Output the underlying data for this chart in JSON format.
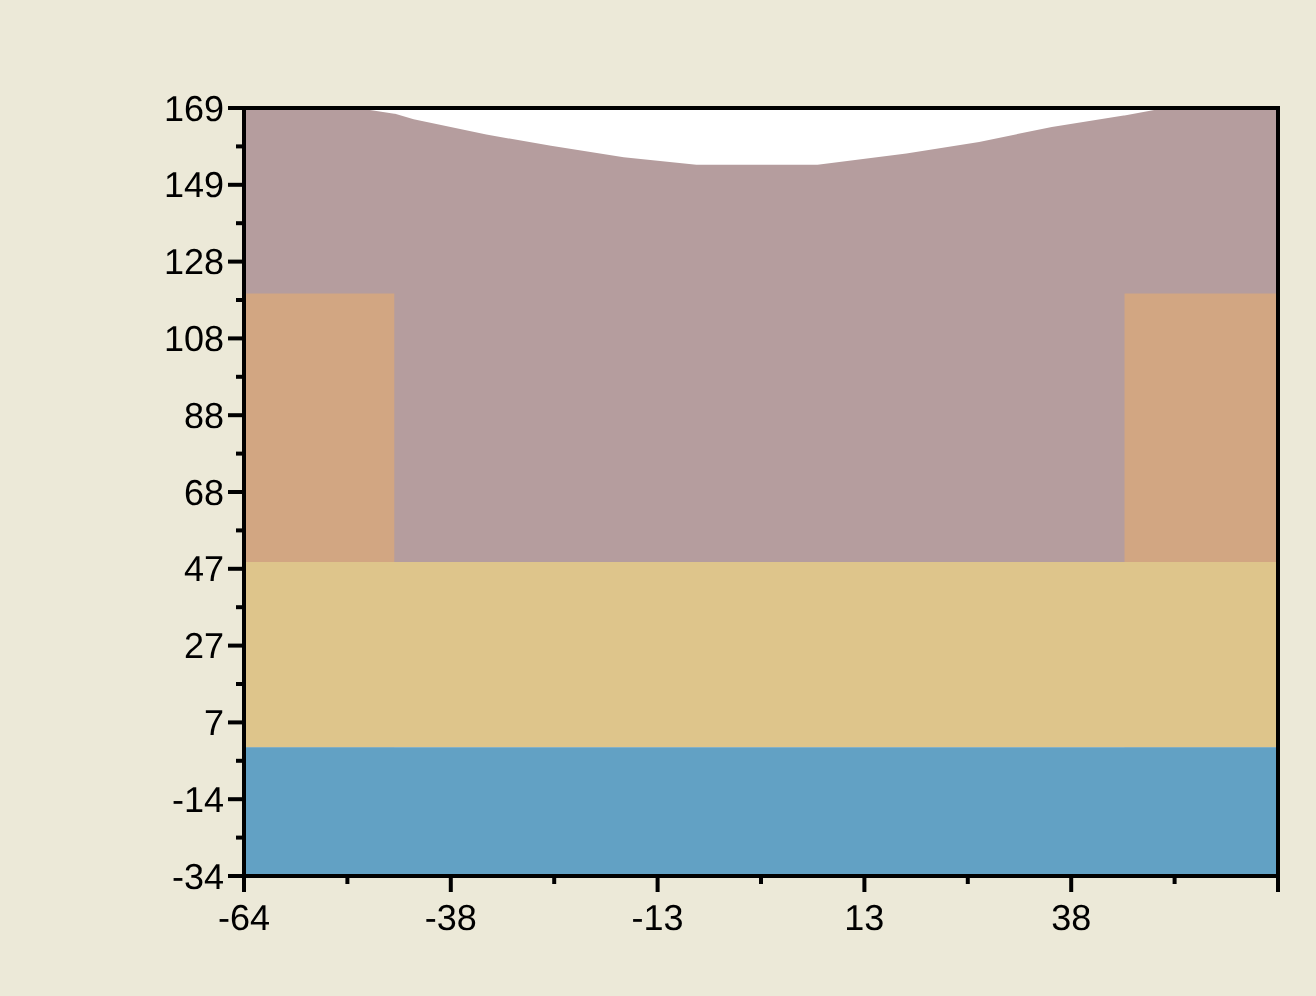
{
  "chart_data": {
    "type": "area",
    "x": [
      -64,
      -50,
      -45.4,
      -45.3,
      -43,
      -34,
      -26,
      -17,
      -8,
      7,
      18,
      27,
      36,
      44.9,
      45,
      50,
      64
    ],
    "xlim": [
      -64,
      64
    ],
    "xticks": [
      -64,
      {
        "value": -51.2,
        "label": null
      },
      {
        "value": -38.4,
        "label": "-38"
      },
      {
        "value": -25.6,
        "label": null
      },
      {
        "value": -12.8,
        "label": "-13"
      },
      {
        "value": 0,
        "label": null
      },
      {
        "value": 12.8,
        "label": "13"
      },
      {
        "value": 25.6,
        "label": null
      },
      {
        "value": 38.4,
        "label": "38"
      },
      {
        "value": 51.2,
        "label": null
      },
      {
        "value": 64,
        "label": null
      }
    ],
    "ylim": [
      -34,
      169
    ],
    "yticks": [
      -34,
      {
        "value": -23.85,
        "label": null
      },
      {
        "value": -13.7,
        "label": "-14"
      },
      {
        "value": -3.55,
        "label": null
      },
      {
        "value": 6.6,
        "label": "7"
      },
      {
        "value": 16.75,
        "label": null
      },
      {
        "value": 26.9,
        "label": "27"
      },
      {
        "value": 37.05,
        "label": null
      },
      {
        "value": 47.2,
        "label": "47"
      },
      {
        "value": 57.35,
        "label": null
      },
      {
        "value": 67.5,
        "label": "68"
      },
      {
        "value": 77.65,
        "label": null
      },
      {
        "value": 87.8,
        "label": "88"
      },
      {
        "value": 97.95,
        "label": null
      },
      {
        "value": 108.1,
        "label": "108"
      },
      {
        "value": 118.25,
        "label": null
      },
      {
        "value": 128.4,
        "label": "128"
      },
      {
        "value": 138.55,
        "label": null
      },
      {
        "value": 148.7,
        "label": "149"
      },
      {
        "value": 158.85,
        "label": null
      },
      169
    ],
    "series": [
      {
        "color": "#b59d9e",
        "values": [
          169,
          169,
          167.5,
          167.5,
          166,
          162,
          159,
          156,
          154,
          154,
          157,
          160,
          164,
          167,
          167,
          169,
          169
        ]
      },
      {
        "color": "#d2a682",
        "values": [
          120,
          120,
          120,
          null,
          null,
          null,
          null,
          null,
          null,
          null,
          null,
          null,
          null,
          null,
          120,
          120,
          120
        ]
      },
      {
        "color": "#dec58b",
        "values": [
          49,
          49,
          49,
          49,
          49,
          49,
          49,
          49,
          49,
          49,
          49,
          49,
          49,
          49,
          49,
          49,
          49
        ]
      },
      {
        "color": "#62a1c4",
        "values": [
          -34,
          -34,
          -34,
          -34,
          -34,
          -34,
          -34,
          -34,
          -34,
          -34,
          -34,
          -34,
          -34,
          -34,
          -34,
          -34,
          -34
        ]
      }
    ]
  }
}
